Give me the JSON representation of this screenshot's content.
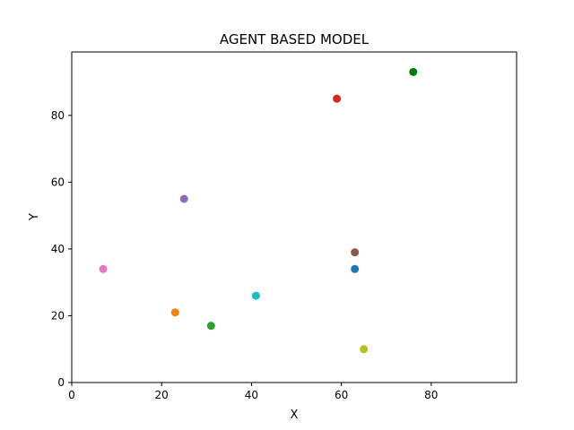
{
  "chart_data": {
    "type": "scatter",
    "title": "AGENT BASED MODEL",
    "xlabel": "X",
    "ylabel": "Y",
    "xlim": [
      0,
      99
    ],
    "ylim": [
      0,
      99
    ],
    "xticks": [
      0,
      20,
      40,
      60,
      80
    ],
    "yticks": [
      0,
      20,
      40,
      60,
      80
    ],
    "grid": false,
    "points": [
      {
        "x": 63,
        "y": 34,
        "color": "#1f77b4"
      },
      {
        "x": 23,
        "y": 21,
        "color": "#ff7f0e"
      },
      {
        "x": 31,
        "y": 17,
        "color": "#2ca02c"
      },
      {
        "x": 59,
        "y": 85,
        "color": "#d62728"
      },
      {
        "x": 25,
        "y": 55,
        "color": "#9467bd"
      },
      {
        "x": 63,
        "y": 39,
        "color": "#8c564b"
      },
      {
        "x": 7,
        "y": 34,
        "color": "#e377c2"
      },
      {
        "x": 65,
        "y": 10,
        "color": "#bcbd22"
      },
      {
        "x": 41,
        "y": 26,
        "color": "#17becf"
      },
      {
        "x": 76,
        "y": 93,
        "color": "#007f00"
      }
    ]
  }
}
